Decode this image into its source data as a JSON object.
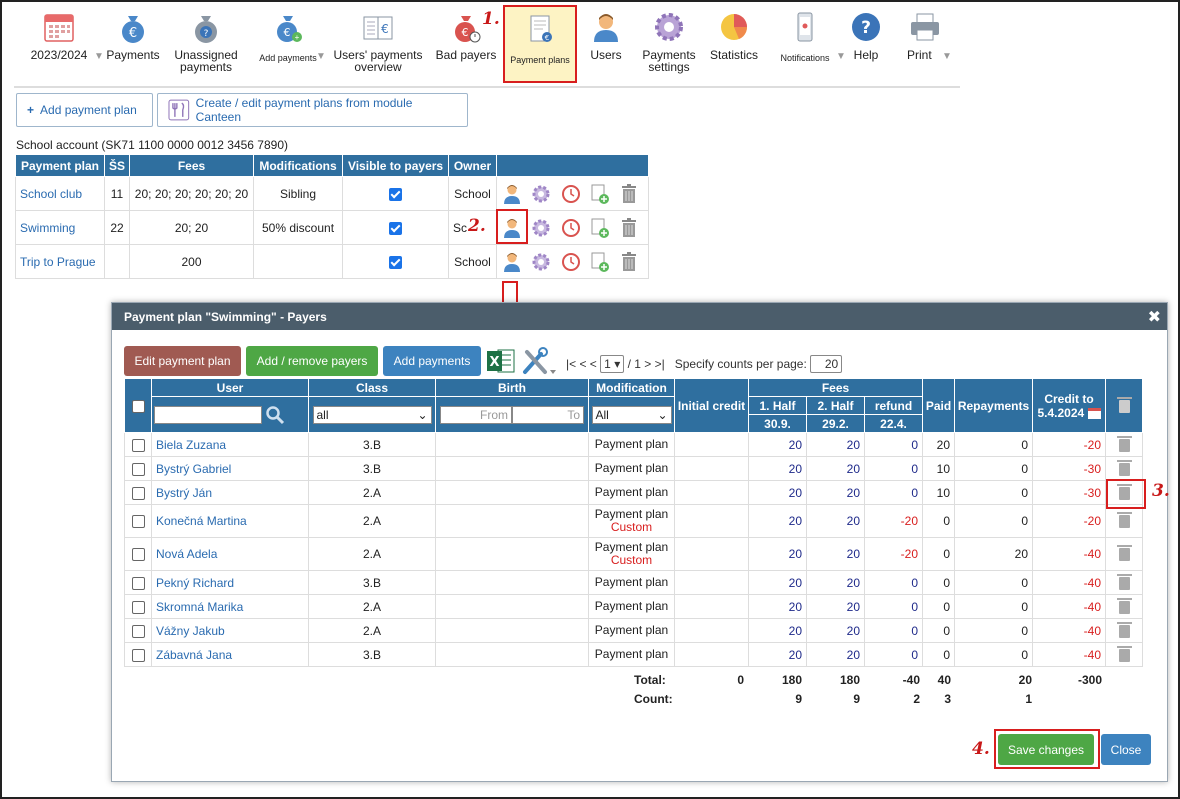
{
  "toolbar": {
    "items": [
      {
        "label": "2023/2024",
        "icon": "calendar-icon"
      },
      {
        "label": "Payments",
        "icon": "money-bag-euro-icon"
      },
      {
        "label": "Unassigned payments",
        "icon": "money-bag-question-icon"
      },
      {
        "label": "Add payments",
        "icon": "money-bag-add-icon"
      },
      {
        "label": "Users' payments overview",
        "icon": "ledger-euro-icon"
      },
      {
        "label": "Bad payers",
        "icon": "money-bag-clock-icon"
      },
      {
        "label": "Payment plans",
        "icon": "document-euro-icon"
      },
      {
        "label": "Users",
        "icon": "user-icon"
      },
      {
        "label": "Payments settings",
        "icon": "gear-icon"
      },
      {
        "label": "Statistics",
        "icon": "pie-chart-icon"
      },
      {
        "label": "Notifications",
        "icon": "phone-icon"
      },
      {
        "label": "Help",
        "icon": "help-icon"
      },
      {
        "label": "Print",
        "icon": "printer-icon"
      }
    ]
  },
  "steps": {
    "s1": "1.",
    "s2": "2.",
    "s3": "3.",
    "s4": "4."
  },
  "plans": {
    "add_button": "Add payment plan",
    "canteen_button": "Create / edit payment plans from module Canteen",
    "account": "School account (SK71 1100 0000 0012 3456 7890)",
    "headers": [
      "Payment plan",
      "ŠS",
      "Fees",
      "Modifications",
      "Visible to payers",
      "Owner"
    ],
    "rows": [
      {
        "name": "School club",
        "ss": "11",
        "fees": "20; 20; 20; 20; 20; 20",
        "mod": "Sibling",
        "owner": "School"
      },
      {
        "name": "Swimming",
        "ss": "22",
        "fees": "20; 20",
        "mod": "50% discount",
        "owner": "Sc"
      },
      {
        "name": "Trip to Prague",
        "ss": "",
        "fees": "200",
        "mod": "",
        "owner": "School"
      }
    ]
  },
  "modal": {
    "title": "Payment plan \"Swimming\" - Payers",
    "edit_button": "Edit payment plan",
    "addremove_button": "Add / remove payers",
    "addpayments_button": "Add payments",
    "pager": {
      "first": "|<",
      "prev": "< <",
      "page": "1",
      "of": "/ 1",
      "next": "> >|",
      "counts_label": "Specify counts per page:",
      "counts_value": "20"
    },
    "headers": {
      "user": "User",
      "class": "Class",
      "birth": "Birth",
      "modification": "Modification",
      "initial_credit": "Initial credit",
      "fees": "Fees",
      "half1": "1. Half",
      "half1_date": "30.9.",
      "half2": "2. Half",
      "half2_date": "29.2.",
      "refund": "refund",
      "refund_date": "22.4.",
      "paid": "Paid",
      "repayments": "Repayments",
      "credit_to": "Credit to",
      "credit_date": "5.4.2024"
    },
    "filters": {
      "class": "all",
      "from": "From",
      "to": "To",
      "modification": "All"
    },
    "rows": [
      {
        "user": "Biela Zuzana",
        "class": "3.B",
        "mod": "Payment plan",
        "custom": "",
        "h1": "20",
        "h2": "20",
        "refund": "0",
        "paid": "20",
        "rep": "0",
        "credit": "-20"
      },
      {
        "user": "Bystrý Gabriel",
        "class": "3.B",
        "mod": "Payment plan",
        "custom": "",
        "h1": "20",
        "h2": "20",
        "refund": "0",
        "paid": "10",
        "rep": "0",
        "credit": "-30"
      },
      {
        "user": "Bystrý Ján",
        "class": "2.A",
        "mod": "Payment plan",
        "custom": "",
        "h1": "20",
        "h2": "20",
        "refund": "0",
        "paid": "10",
        "rep": "0",
        "credit": "-30"
      },
      {
        "user": "Konečná Martina",
        "class": "2.A",
        "mod": "Payment plan",
        "custom": "Custom",
        "h1": "20",
        "h2": "20",
        "refund": "-20",
        "paid": "0",
        "rep": "0",
        "credit": "-20"
      },
      {
        "user": "Nová Adela",
        "class": "2.A",
        "mod": "Payment plan",
        "custom": "Custom",
        "h1": "20",
        "h2": "20",
        "refund": "-20",
        "paid": "0",
        "rep": "20",
        "credit": "-40"
      },
      {
        "user": "Pekný Richard",
        "class": "3.B",
        "mod": "Payment plan",
        "custom": "",
        "h1": "20",
        "h2": "20",
        "refund": "0",
        "paid": "0",
        "rep": "0",
        "credit": "-40"
      },
      {
        "user": "Skromná Marika",
        "class": "2.A",
        "mod": "Payment plan",
        "custom": "",
        "h1": "20",
        "h2": "20",
        "refund": "0",
        "paid": "0",
        "rep": "0",
        "credit": "-40"
      },
      {
        "user": "Vážny Jakub",
        "class": "2.A",
        "mod": "Payment plan",
        "custom": "",
        "h1": "20",
        "h2": "20",
        "refund": "0",
        "paid": "0",
        "rep": "0",
        "credit": "-40"
      },
      {
        "user": "Zábavná Jana",
        "class": "3.B",
        "mod": "Payment plan",
        "custom": "",
        "h1": "20",
        "h2": "20",
        "refund": "0",
        "paid": "0",
        "rep": "0",
        "credit": "-40"
      }
    ],
    "totals": {
      "label": "Total:",
      "initial": "0",
      "h1": "180",
      "h2": "180",
      "refund": "-40",
      "paid": "40",
      "rep": "20",
      "credit": "-300"
    },
    "counts": {
      "label": "Count:",
      "h1": "9",
      "h2": "9",
      "refund": "2",
      "paid": "3",
      "rep": "1"
    },
    "save_button": "Save changes",
    "close_button": "Close"
  }
}
